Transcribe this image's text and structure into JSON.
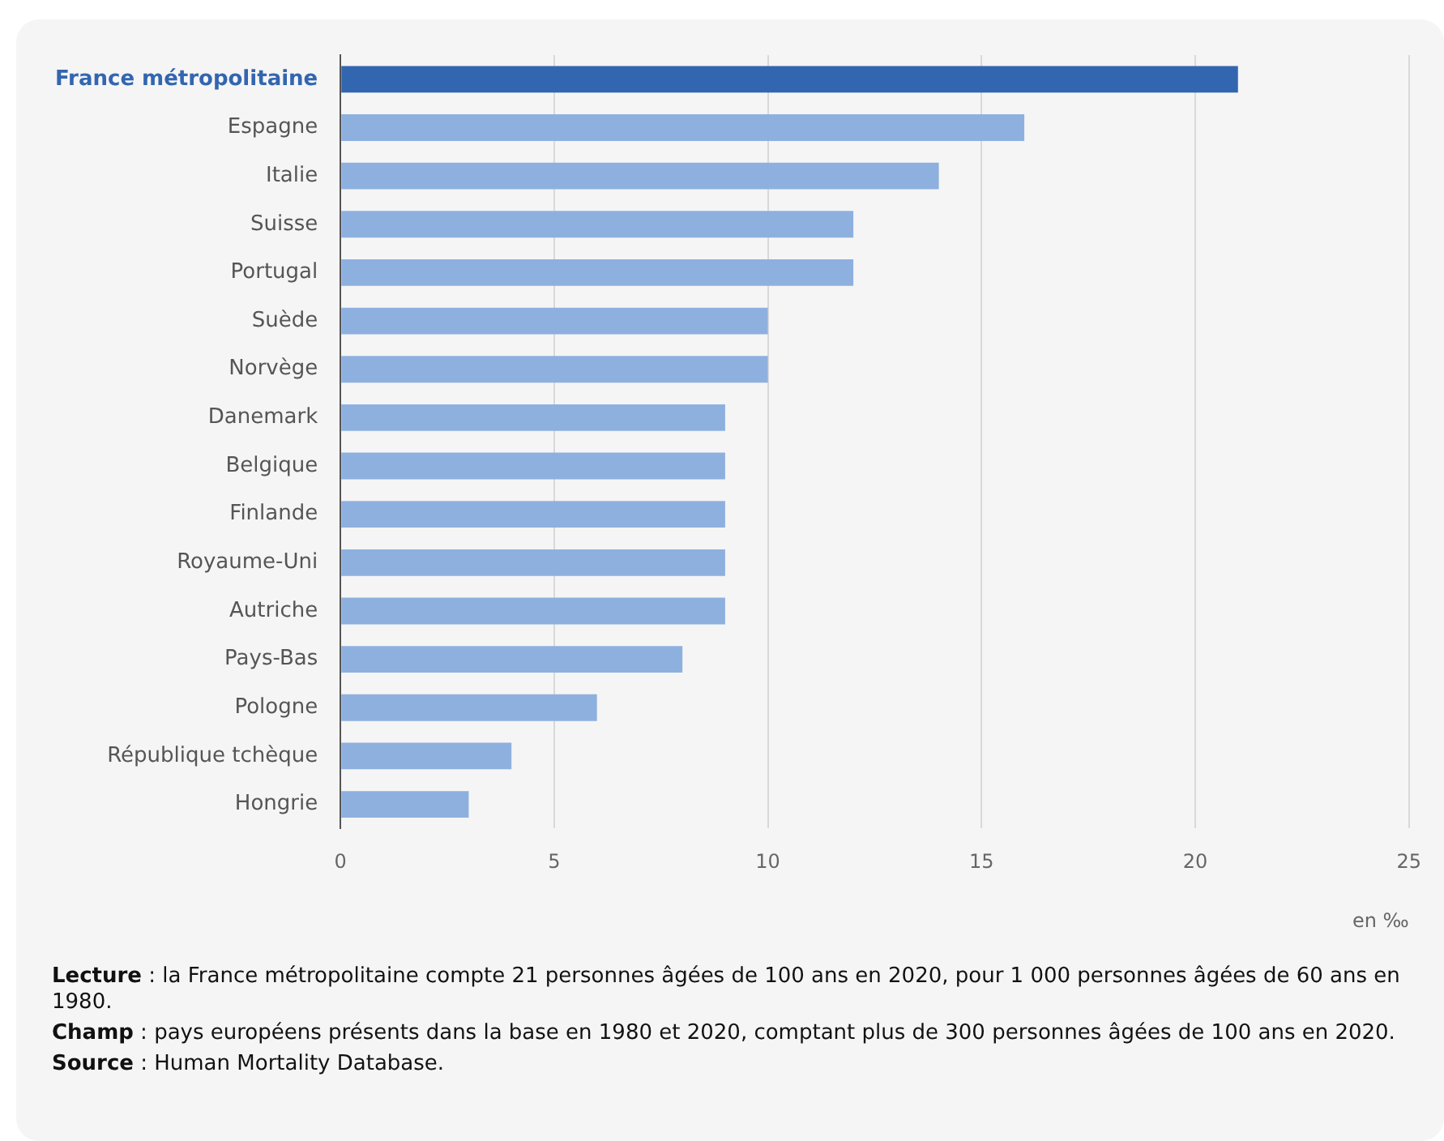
{
  "chart_data": {
    "type": "bar",
    "orientation": "horizontal",
    "categories": [
      "France métropolitaine",
      "Espagne",
      "Italie",
      "Suisse",
      "Portugal",
      "Suède",
      "Norvège",
      "Danemark",
      "Belgique",
      "Finlande",
      "Royaume-Uni",
      "Autriche",
      "Pays-Bas",
      "Pologne",
      "République tchèque",
      "Hongrie"
    ],
    "values": [
      21,
      16,
      14,
      12,
      12,
      10,
      10,
      9,
      9,
      9,
      9,
      9,
      8,
      6,
      4,
      3
    ],
    "colors": [
      "#3366b0",
      "#8eb0df",
      "#8eb0df",
      "#8eb0df",
      "#8eb0df",
      "#8eb0df",
      "#8eb0df",
      "#8eb0df",
      "#8eb0df",
      "#8eb0df",
      "#8eb0df",
      "#8eb0df",
      "#8eb0df",
      "#8eb0df",
      "#8eb0df",
      "#8eb0df"
    ],
    "xlim": [
      0,
      25
    ],
    "xticks": [
      0,
      5,
      10,
      15,
      20,
      25
    ],
    "grid": "x",
    "legend": false,
    "xlabel": "en ‰",
    "annotations": [
      "Lecture : la France métropolitaine compte 21 personnes âgées de 100 ans en 2020, pour 1 000 personnes âgées de 60 ans en 1980.",
      "Champ : pays européens présents dans la base en 1980 et 2020, comptant plus de 300 personnes âgées de 100 ans en 2020.",
      "Source : Human Mortality Database."
    ]
  }
}
